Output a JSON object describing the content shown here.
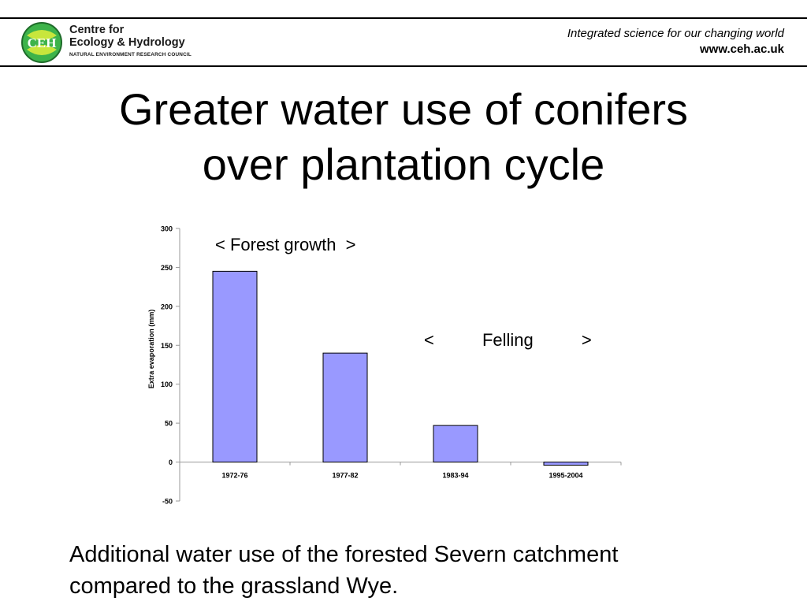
{
  "header": {
    "logo_mark": "CEH",
    "logo_line1": "Centre for",
    "logo_line2": "Ecology & Hydrology",
    "logo_line3": "NATURAL ENVIRONMENT RESEARCH COUNCIL",
    "tagline": "Integrated science for our changing world",
    "url": "www.ceh.ac.uk"
  },
  "slide": {
    "title_line1": "Greater water use of conifers",
    "title_line2": "over plantation cycle",
    "footer_line1": "Additional water use of the forested Severn catchment",
    "footer_line2": "compared to the grassland Wye."
  },
  "colors": {
    "bar_fill": "#9999ff",
    "bar_stroke": "#000000",
    "logo_green": "#3db34a",
    "logo_lime": "#c8e63c"
  },
  "chart_data": {
    "type": "bar",
    "categories": [
      "1972-76",
      "1977-82",
      "1983-94",
      "1995-2004"
    ],
    "values": [
      245,
      140,
      47,
      -4
    ],
    "title": "",
    "xlabel": "",
    "ylabel": "Extra evaporation (mm)",
    "ylim": [
      -50,
      300
    ],
    "yticks": [
      300,
      250,
      200,
      150,
      100,
      50,
      0,
      -50
    ],
    "grid": false,
    "annotations": [
      "< Forest growth  >",
      "<          Felling          >"
    ]
  }
}
